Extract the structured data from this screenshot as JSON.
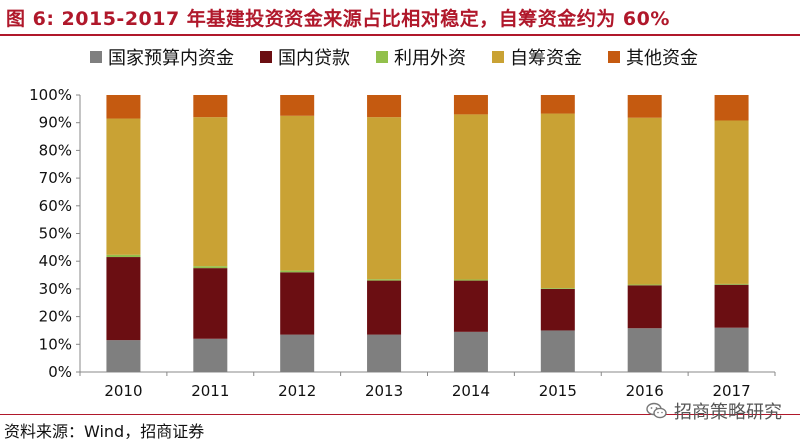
{
  "title": "图 6:  2015-2017 年基建投资资金来源占比相对稳定，自筹资金约为 60%",
  "source": "资料来源：Wind，招商证券",
  "watermark": "招商策略研究",
  "watermark_icon": "wechat-icon",
  "colors": {
    "title": "#b0182b",
    "rule": "#b0182b"
  },
  "chart_data": {
    "type": "bar",
    "stacked": true,
    "categories": [
      "2010",
      "2011",
      "2012",
      "2013",
      "2014",
      "2015",
      "2016",
      "2017"
    ],
    "ylim": [
      0,
      100
    ],
    "yticks": [
      "0%",
      "10%",
      "20%",
      "30%",
      "40%",
      "50%",
      "60%",
      "70%",
      "80%",
      "90%",
      "100%"
    ],
    "grid": false,
    "legend_position": "top",
    "series": [
      {
        "name": "国家预算内资金",
        "color": "#7f7f7f",
        "values": [
          11.5,
          12.0,
          13.5,
          13.5,
          14.5,
          15.0,
          15.8,
          16.0
        ]
      },
      {
        "name": "国内贷款",
        "color": "#6b0e12",
        "values": [
          30.0,
          25.5,
          22.5,
          19.5,
          18.5,
          15.0,
          15.5,
          15.5
        ]
      },
      {
        "name": "利用外资",
        "color": "#92c04c",
        "values": [
          0.8,
          0.7,
          0.6,
          0.5,
          0.4,
          0.3,
          0.3,
          0.3
        ]
      },
      {
        "name": "自筹资金",
        "color": "#c9a234",
        "values": [
          49.2,
          53.8,
          55.9,
          58.5,
          59.6,
          63.0,
          60.2,
          59.0
        ]
      },
      {
        "name": "其他资金",
        "color": "#c55a10",
        "values": [
          8.5,
          8.0,
          7.5,
          8.0,
          7.0,
          6.7,
          8.2,
          9.2
        ]
      }
    ]
  }
}
